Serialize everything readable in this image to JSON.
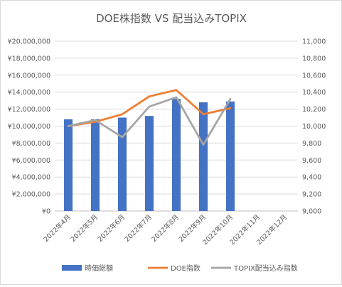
{
  "chart_data": {
    "type": "bar",
    "title": "DOE株指数 VS 配当込みTOPIX",
    "categories": [
      "2022年4月",
      "2022年5月",
      "2022年6月",
      "2022年7月",
      "2022年8月",
      "2022年9月",
      "2022年10月",
      "2022年11月",
      "2022年12月"
    ],
    "y_left": {
      "min": 0,
      "max": 20000000,
      "step": 2000000,
      "ticks": [
        "¥0",
        "¥2,000,000",
        "¥4,000,000",
        "¥6,000,000",
        "¥8,000,000",
        "¥10,000,000",
        "¥12,000,000",
        "¥14,000,000",
        "¥16,000,000",
        "¥18,000,000",
        "¥20,000,000"
      ]
    },
    "y_right": {
      "min": 9000,
      "max": 11000,
      "step": 200,
      "ticks": [
        "9,000",
        "9,200",
        "9,400",
        "9,600",
        "9,800",
        "10,000",
        "10,200",
        "10,400",
        "10,600",
        "10,800",
        "11,000"
      ]
    },
    "grid": true,
    "legend_position": "bottom",
    "series": [
      {
        "name": "時価総額",
        "kind": "bar",
        "axis": "left",
        "color": "#4472c4",
        "values": [
          10800000,
          10800000,
          11000000,
          11200000,
          13200000,
          12800000,
          12900000,
          null,
          null
        ]
      },
      {
        "name": "DOE指数",
        "kind": "line",
        "axis": "right",
        "color": "#ed7d31",
        "values": [
          10000,
          10050,
          10140,
          10350,
          10425,
          10140,
          10210,
          null,
          null
        ]
      },
      {
        "name": "TOPIX配当込み指数",
        "kind": "line",
        "axis": "right",
        "color": "#a5a5a5",
        "values": [
          10000,
          10070,
          9870,
          10230,
          10340,
          9780,
          10320,
          null,
          null
        ]
      }
    ]
  }
}
